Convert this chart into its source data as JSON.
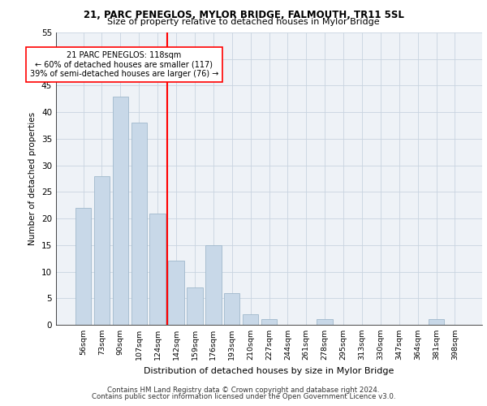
{
  "title1": "21, PARC PENEGLOS, MYLOR BRIDGE, FALMOUTH, TR11 5SL",
  "title2": "Size of property relative to detached houses in Mylor Bridge",
  "xlabel": "Distribution of detached houses by size in Mylor Bridge",
  "ylabel": "Number of detached properties",
  "categories": [
    "56sqm",
    "73sqm",
    "90sqm",
    "107sqm",
    "124sqm",
    "142sqm",
    "159sqm",
    "176sqm",
    "193sqm",
    "210sqm",
    "227sqm",
    "244sqm",
    "261sqm",
    "278sqm",
    "295sqm",
    "313sqm",
    "330sqm",
    "347sqm",
    "364sqm",
    "381sqm",
    "398sqm"
  ],
  "values": [
    22,
    28,
    43,
    38,
    21,
    12,
    7,
    15,
    6,
    2,
    1,
    0,
    0,
    1,
    0,
    0,
    0,
    0,
    0,
    1,
    0
  ],
  "bar_color": "#c8d8e8",
  "bar_edge_color": "#a0b8cc",
  "vline_x": 4.5,
  "vline_color": "red",
  "annotation_line1": "21 PARC PENEGLOS: 118sqm",
  "annotation_line2": "← 60% of detached houses are smaller (117)",
  "annotation_line3": "39% of semi-detached houses are larger (76) →",
  "annotation_box_color": "white",
  "annotation_box_edge_color": "red",
  "ylim": [
    0,
    55
  ],
  "yticks": [
    0,
    5,
    10,
    15,
    20,
    25,
    30,
    35,
    40,
    45,
    50,
    55
  ],
  "footer1": "Contains HM Land Registry data © Crown copyright and database right 2024.",
  "footer2": "Contains public sector information licensed under the Open Government Licence v3.0.",
  "bg_color": "#eef2f7",
  "grid_color": "#c8d4e0"
}
